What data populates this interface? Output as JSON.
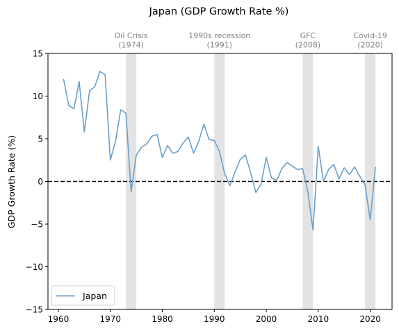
{
  "chart_data": {
    "type": "line",
    "title": "Japan (GDP Growth Rate %)",
    "xlabel": "",
    "ylabel": "GDP Growth Rate (%)",
    "xlim": [
      1958,
      2024.2
    ],
    "ylim": [
      -15,
      15
    ],
    "x_ticks": [
      1960,
      1970,
      1980,
      1990,
      2000,
      2010,
      2020
    ],
    "y_ticks": [
      -15,
      -10,
      -5,
      0,
      5,
      10,
      15
    ],
    "grid": false,
    "legend_position": "lower-left",
    "zero_line": {
      "y": 0,
      "style": "dashed",
      "color": "#000000"
    },
    "series": [
      {
        "name": "Japan",
        "color": "#6b9ec8",
        "x": [
          1961,
          1962,
          1963,
          1964,
          1965,
          1966,
          1967,
          1968,
          1969,
          1970,
          1971,
          1972,
          1973,
          1974,
          1975,
          1976,
          1977,
          1978,
          1979,
          1980,
          1981,
          1982,
          1983,
          1984,
          1985,
          1986,
          1987,
          1988,
          1989,
          1990,
          1991,
          1992,
          1993,
          1994,
          1995,
          1996,
          1997,
          1998,
          1999,
          2000,
          2001,
          2002,
          2003,
          2004,
          2005,
          2006,
          2007,
          2008,
          2009,
          2010,
          2011,
          2012,
          2013,
          2014,
          2015,
          2016,
          2017,
          2018,
          2019,
          2020,
          2021
        ],
        "y": [
          12.0,
          8.9,
          8.5,
          11.7,
          5.8,
          10.6,
          11.1,
          12.9,
          12.5,
          2.5,
          4.7,
          8.4,
          8.0,
          -1.2,
          3.1,
          4.0,
          4.4,
          5.3,
          5.5,
          2.8,
          4.2,
          3.3,
          3.5,
          4.5,
          5.2,
          3.3,
          4.7,
          6.7,
          4.9,
          4.8,
          3.5,
          0.9,
          -0.5,
          1.1,
          2.6,
          3.1,
          1.0,
          -1.3,
          -0.3,
          2.8,
          0.4,
          0.1,
          1.5,
          2.2,
          1.8,
          1.4,
          1.5,
          -1.2,
          -5.7,
          4.1,
          0.0,
          1.4,
          2.0,
          0.3,
          1.6,
          0.8,
          1.7,
          0.6,
          -0.4,
          -4.5,
          1.7
        ]
      }
    ],
    "annotations": [
      {
        "label": "Oil Crisis\n(1974)",
        "start": 1973,
        "end": 1975
      },
      {
        "label": "1990s recession\n(1991)",
        "start": 1990,
        "end": 1992
      },
      {
        "label": "GFC\n(2008)",
        "start": 2007,
        "end": 2009
      },
      {
        "label": "Covid-19\n(2020)",
        "start": 2019,
        "end": 2021
      }
    ]
  }
}
